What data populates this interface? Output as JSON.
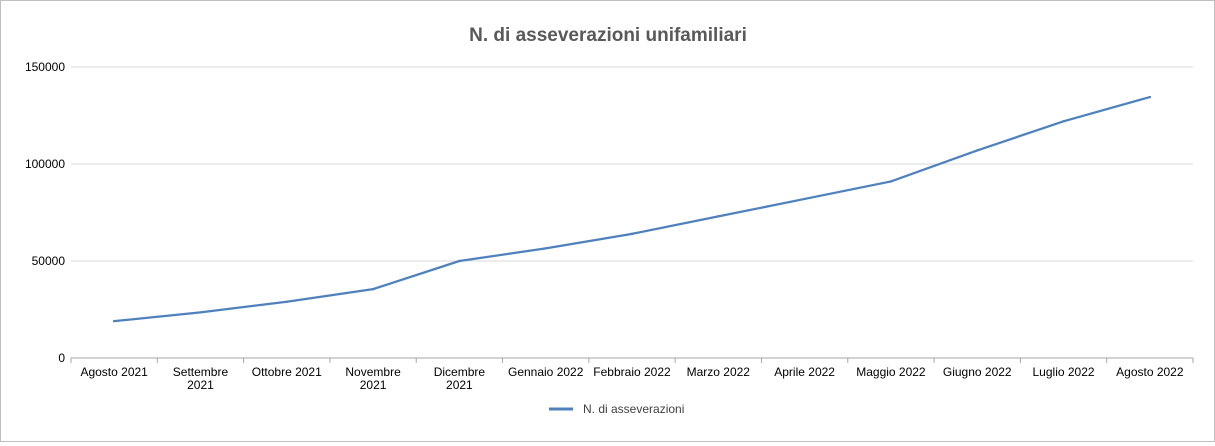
{
  "chart_data": {
    "type": "line",
    "title": "N. di asseverazioni unifamiliari",
    "categories": [
      [
        "Agosto 2021"
      ],
      [
        "Settembre",
        "2021"
      ],
      [
        "Ottobre 2021"
      ],
      [
        "Novembre",
        "2021"
      ],
      [
        "Dicembre",
        "2021"
      ],
      [
        "Gennaio 2022"
      ],
      [
        "Febbraio 2022"
      ],
      [
        "Marzo 2022"
      ],
      [
        "Aprile 2022"
      ],
      [
        "Maggio 2022"
      ],
      [
        "Giugno 2022"
      ],
      [
        "Luglio 2022"
      ],
      [
        "Agosto 2022"
      ]
    ],
    "series": [
      {
        "name": "N. di asseverazioni",
        "color": "#4f81bd",
        "values": [
          19000,
          23500,
          29000,
          35500,
          50000,
          56500,
          64000,
          73000,
          82000,
          91000,
          107000,
          122000,
          134500
        ]
      }
    ],
    "ylim": [
      0,
      150000
    ],
    "yticks": [
      0,
      50000,
      100000,
      150000
    ],
    "grid": true,
    "legend": "bottom",
    "xlabel": "",
    "ylabel": ""
  }
}
